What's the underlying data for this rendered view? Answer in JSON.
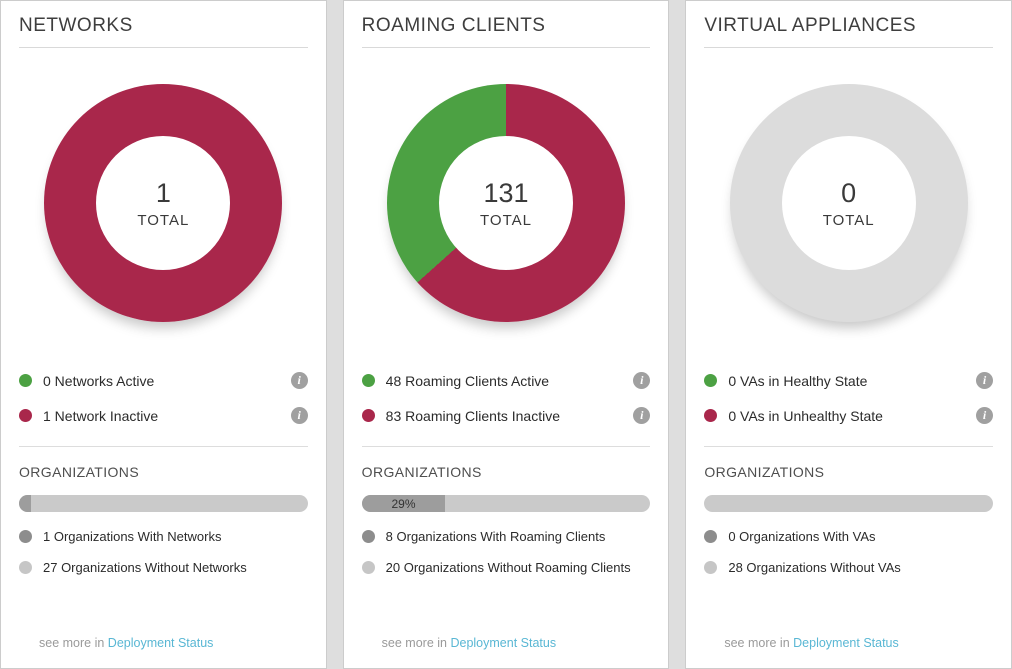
{
  "colors": {
    "active_green": "#4ca143",
    "inactive_crimson": "#a9274b",
    "empty_ring_gray": "#dcdcdc",
    "link_blue": "#59b7d4",
    "with_dot_gray": "#8d8d8d",
    "without_dot_gray": "#c6c6c6",
    "progress_fill_gray": "#9d9d9d"
  },
  "icons": {
    "info_glyph": "i"
  },
  "cards": [
    {
      "title": "NETWORKS",
      "chart": {
        "total": "1",
        "total_label": "TOTAL",
        "segments": [
          {
            "label": "Networks Inactive",
            "value": 1,
            "color": "#a9274b"
          },
          {
            "label": "Networks Active",
            "value": 0,
            "color": "#4ca143"
          }
        ]
      },
      "legend": [
        {
          "label": "0 Networks Active",
          "color": "#4ca143"
        },
        {
          "label": "1 Network Inactive",
          "color": "#a9274b"
        }
      ],
      "organizations": {
        "heading": "ORGANIZATIONS",
        "progress_percent": 4,
        "progress_label": "",
        "items": [
          {
            "label": "1 Organizations With Networks",
            "color": "#8d8d8d"
          },
          {
            "label": "27 Organizations Without Networks",
            "color": "#c6c6c6"
          }
        ],
        "see_more_prefix": "see more in",
        "see_more_link": "Deployment Status"
      }
    },
    {
      "title": "ROAMING CLIENTS",
      "chart": {
        "total": "131",
        "total_label": "TOTAL",
        "segments": [
          {
            "label": "Roaming Clients Inactive",
            "value": 83,
            "color": "#a9274b"
          },
          {
            "label": "Roaming Clients Active",
            "value": 48,
            "color": "#4ca143"
          }
        ]
      },
      "legend": [
        {
          "label": "48 Roaming Clients Active",
          "color": "#4ca143"
        },
        {
          "label": "83 Roaming Clients Inactive",
          "color": "#a9274b"
        }
      ],
      "organizations": {
        "heading": "ORGANIZATIONS",
        "progress_percent": 29,
        "progress_label": "29%",
        "items": [
          {
            "label": "8 Organizations With Roaming Clients",
            "color": "#8d8d8d"
          },
          {
            "label": "20 Organizations Without Roaming Clients",
            "color": "#c6c6c6"
          }
        ],
        "see_more_prefix": "see more in",
        "see_more_link": "Deployment Status"
      }
    },
    {
      "title": "VIRTUAL APPLIANCES",
      "chart": {
        "total": "0",
        "total_label": "TOTAL",
        "segments": [
          {
            "label": "VAs in Unhealthy State",
            "value": 0,
            "color": "#a9274b"
          },
          {
            "label": "VAs in Healthy State",
            "value": 0,
            "color": "#4ca143"
          }
        ]
      },
      "legend": [
        {
          "label": "0 VAs in Healthy State",
          "color": "#4ca143"
        },
        {
          "label": "0 VAs in Unhealthy State",
          "color": "#a9274b"
        }
      ],
      "organizations": {
        "heading": "ORGANIZATIONS",
        "progress_percent": 0,
        "progress_label": "",
        "items": [
          {
            "label": "0 Organizations With VAs",
            "color": "#8d8d8d"
          },
          {
            "label": "28 Organizations Without VAs",
            "color": "#c6c6c6"
          }
        ],
        "see_more_prefix": "see more in",
        "see_more_link": "Deployment Status"
      }
    }
  ],
  "chart_data": [
    {
      "type": "pie",
      "title": "NETWORKS",
      "labels": [
        "Networks Active",
        "Networks Inactive"
      ],
      "values": [
        0,
        1
      ],
      "colors": [
        "#4ca143",
        "#a9274b"
      ],
      "center_text": "1 TOTAL",
      "organizations": {
        "with": 1,
        "without": 27,
        "progress_percent": 4
      }
    },
    {
      "type": "pie",
      "title": "ROAMING CLIENTS",
      "labels": [
        "Roaming Clients Active",
        "Roaming Clients Inactive"
      ],
      "values": [
        48,
        83
      ],
      "colors": [
        "#4ca143",
        "#a9274b"
      ],
      "center_text": "131 TOTAL",
      "organizations": {
        "with": 8,
        "without": 20,
        "progress_percent": 29
      }
    },
    {
      "type": "pie",
      "title": "VIRTUAL APPLIANCES",
      "labels": [
        "VAs in Healthy State",
        "VAs in Unhealthy State"
      ],
      "values": [
        0,
        0
      ],
      "colors": [
        "#4ca143",
        "#a9274b"
      ],
      "empty_color": "#dcdcdc",
      "center_text": "0 TOTAL",
      "organizations": {
        "with": 0,
        "without": 28,
        "progress_percent": 0
      }
    }
  ]
}
